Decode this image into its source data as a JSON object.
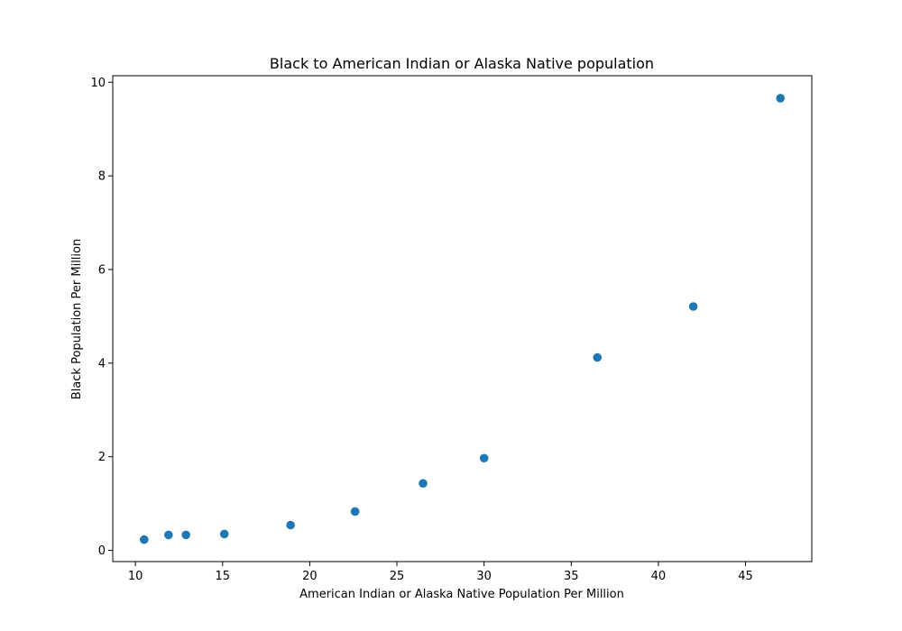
{
  "chart_data": {
    "type": "scatter",
    "title": "Black to American Indian or Alaska Native population",
    "xlabel": "American Indian or Alaska Native Population Per Million",
    "ylabel": "Black Population Per Million",
    "xlim": [
      8.7,
      48.8
    ],
    "ylim": [
      -0.24,
      10.14
    ],
    "xticks": [
      10,
      15,
      20,
      25,
      30,
      35,
      40,
      45
    ],
    "yticks": [
      0,
      2,
      4,
      6,
      8,
      10
    ],
    "grid": false,
    "legend": "none",
    "series": [
      {
        "color": "#1f77b4",
        "points": [
          {
            "x": 10.5,
            "y": 0.23
          },
          {
            "x": 11.9,
            "y": 0.33
          },
          {
            "x": 12.9,
            "y": 0.33
          },
          {
            "x": 15.1,
            "y": 0.35
          },
          {
            "x": 18.9,
            "y": 0.54
          },
          {
            "x": 22.6,
            "y": 0.83
          },
          {
            "x": 26.5,
            "y": 1.43
          },
          {
            "x": 30.0,
            "y": 1.97
          },
          {
            "x": 36.5,
            "y": 4.12
          },
          {
            "x": 42.0,
            "y": 5.21
          },
          {
            "x": 47.0,
            "y": 9.66
          }
        ]
      }
    ]
  }
}
